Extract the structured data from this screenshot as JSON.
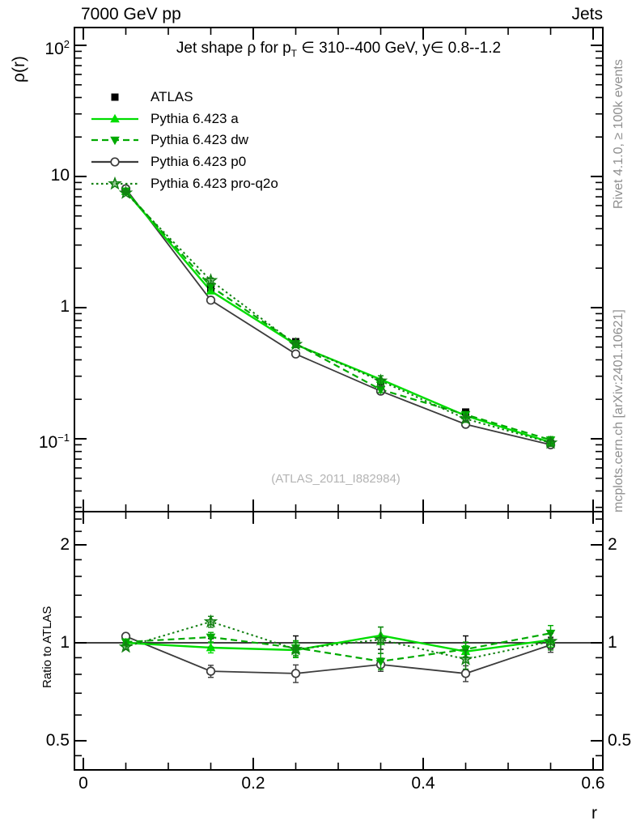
{
  "header": {
    "left": "7000 GeV pp",
    "right": "Jets"
  },
  "main_panel": {
    "title_pre": "Jet shape ρ for p",
    "title_sub": "T",
    "title_post": " ∈ 310--400 GeV, y∈ 0.8--1.2",
    "ylabel": "ρ(r)",
    "watermark": "(ATLAS_2011_I882984)"
  },
  "ratio_panel": {
    "ylabel": "Ratio to ATLAS"
  },
  "side_notes": {
    "top": "Rivet 4.1.0, ≥ 100k events",
    "bottom": "mcplots.cern.ch [arXiv:2401.10621]",
    "color": "#8f8f8f"
  },
  "xaxis": {
    "label": "r",
    "major": [
      {
        "v": 0,
        "label": "0"
      },
      {
        "v": 0.2,
        "label": "0.2"
      },
      {
        "v": 0.4,
        "label": "0.4"
      },
      {
        "v": 0.6,
        "label": "0.6"
      }
    ],
    "minor_step": 0.05,
    "range": [
      -0.0105,
      0.612
    ]
  },
  "yaxis_main": {
    "scale": "log",
    "major": [
      {
        "v": 100,
        "base": "10",
        "sup": "2"
      },
      {
        "v": 10,
        "base": "10"
      },
      {
        "v": 1,
        "base": "1"
      },
      {
        "v": 0.1,
        "base": "10",
        "sup": "−1"
      }
    ],
    "range": [
      0.028,
      135
    ]
  },
  "yaxis_ratio": {
    "scale": "log",
    "major": [
      {
        "v": 2,
        "label": "2"
      },
      {
        "v": 1,
        "label": "1"
      },
      {
        "v": 0.5,
        "label": "0.5"
      }
    ],
    "minor": [
      0.45,
      0.6,
      0.7,
      0.8,
      0.9,
      1.2,
      1.4,
      1.6,
      1.8,
      2.2,
      2.4
    ],
    "range": [
      0.41,
      2.53
    ]
  },
  "legend": [
    {
      "label": "ATLAS",
      "marker": "square",
      "color": "#000000",
      "line": "none"
    },
    {
      "label": "Pythia 6.423 a",
      "marker": "triangle-up",
      "color": "#00dd00",
      "line": "solid"
    },
    {
      "label": "Pythia 6.423 dw",
      "marker": "triangle-down",
      "color": "#00aa00",
      "line": "dashed"
    },
    {
      "label": "Pythia 6.423 p0",
      "marker": "circle-open",
      "color": "#3c3c3c",
      "line": "solid"
    },
    {
      "label": "Pythia 6.423 pro-q2o",
      "marker": "star-open",
      "color": "#128012",
      "line": "dotted"
    }
  ],
  "chart_data": [
    {
      "id": "main",
      "type": "line",
      "title": "Jet shape ρ for pT ∈ 310--400 GeV, y ∈ 0.8--1.2",
      "xlabel": "r",
      "ylabel": "ρ(r)",
      "yscale": "log",
      "xlim": [
        -0.0105,
        0.612
      ],
      "ylim": [
        0.028,
        135
      ],
      "x": [
        0.05,
        0.15,
        0.25,
        0.35,
        0.45,
        0.55
      ],
      "series": [
        {
          "name": "ATLAS",
          "marker": "square",
          "color": "#000000",
          "line": "none",
          "width": 0,
          "values": [
            7.7,
            1.39,
            0.55,
            0.27,
            0.16,
            0.092
          ]
        },
        {
          "name": "Pythia 6.423 p0",
          "marker": "circle-open",
          "color": "#3c3c3c",
          "line": "solid",
          "width": 1.8,
          "values": [
            8.06,
            1.14,
            0.443,
            0.231,
            0.129,
            0.09
          ]
        },
        {
          "name": "Pythia 6.423 a",
          "marker": "triangle-up",
          "color": "#00dd00",
          "line": "solid",
          "width": 2.4,
          "values": [
            7.7,
            1.34,
            0.522,
            0.284,
            0.15,
            0.094
          ]
        },
        {
          "name": "Pythia 6.423 dw",
          "marker": "triangle-down",
          "color": "#00aa00",
          "line": "dashed",
          "width": 2.2,
          "values": [
            7.75,
            1.45,
            0.531,
            0.237,
            0.153,
            0.098
          ]
        },
        {
          "name": "Pythia 6.423 pro-q2o",
          "marker": "star-open",
          "color": "#128012",
          "line": "dotted",
          "width": 2.0,
          "values": [
            7.49,
            1.61,
            0.525,
            0.276,
            0.142,
            0.093
          ]
        }
      ]
    },
    {
      "id": "ratio",
      "type": "line",
      "ylabel": "Ratio to ATLAS",
      "yscale": "log",
      "xlim": [
        -0.0105,
        0.612
      ],
      "ylim": [
        0.41,
        2.53
      ],
      "reference_line": 1,
      "x": [
        0.05,
        0.15,
        0.25,
        0.35,
        0.45,
        0.55
      ],
      "series": [
        {
          "name": "ATLAS",
          "marker": "none",
          "color": "#000000",
          "line": "none",
          "width": 0,
          "values": [
            1,
            1,
            1,
            1,
            1,
            1
          ],
          "errors": [
            0.01,
            0.03,
            0.05,
            0.045,
            0.05,
            0.04
          ]
        },
        {
          "name": "Pythia 6.423 p0",
          "marker": "circle-open",
          "color": "#3c3c3c",
          "line": "solid",
          "width": 1.8,
          "values": [
            1.047,
            0.818,
            0.805,
            0.857,
            0.805,
            0.985
          ],
          "errors": [
            0.012,
            0.035,
            0.05,
            0.04,
            0.045,
            0.05
          ]
        },
        {
          "name": "Pythia 6.423 a",
          "marker": "triangle-up",
          "color": "#00dd00",
          "line": "solid",
          "width": 2.4,
          "values": [
            1.0,
            0.966,
            0.95,
            1.053,
            0.94,
            1.02
          ],
          "errors": [
            0.01,
            0.035,
            0.05,
            0.065,
            0.04,
            0.05
          ]
        },
        {
          "name": "Pythia 6.423 dw",
          "marker": "triangle-down",
          "color": "#00aa00",
          "line": "dashed",
          "width": 2.2,
          "values": [
            1.006,
            1.041,
            0.965,
            0.877,
            0.955,
            1.07
          ],
          "errors": [
            0.01,
            0.035,
            0.05,
            0.05,
            0.05,
            0.06
          ]
        },
        {
          "name": "Pythia 6.423 pro-q2o",
          "marker": "star-open",
          "color": "#128012",
          "line": "dotted",
          "width": 2.0,
          "values": [
            0.972,
            1.161,
            0.955,
            1.023,
            0.89,
            1.01
          ],
          "errors": [
            0.015,
            0.045,
            0.05,
            0.095,
            0.06,
            0.06
          ]
        }
      ]
    }
  ]
}
